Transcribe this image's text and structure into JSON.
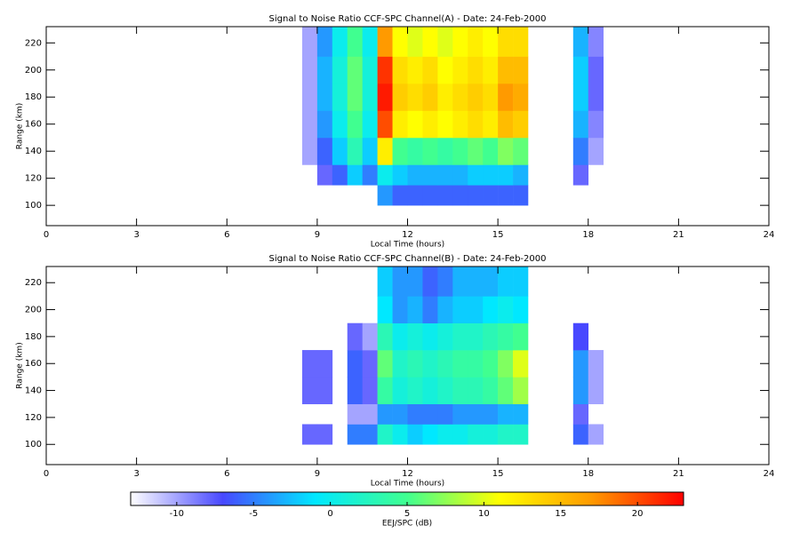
{
  "chart_data": [
    {
      "type": "heatmap",
      "title": "Signal to Noise Ratio CCF-SPC Channel(A) - Date: 24-Feb-2000",
      "xlabel": "Local Time (hours)",
      "ylabel": "Range (km)",
      "xlim": [
        0,
        24
      ],
      "xticks": [
        0,
        3,
        6,
        9,
        12,
        15,
        18,
        21,
        24
      ],
      "ylim": [
        85,
        232
      ],
      "yticks": [
        100,
        120,
        140,
        160,
        180,
        200,
        220
      ],
      "x_edges": [
        8.5,
        9,
        9.5,
        10,
        10.5,
        11,
        11.5,
        12,
        12.5,
        13,
        13.5,
        14,
        14.5,
        15,
        15.5,
        16,
        16.5,
        17,
        17.5,
        18,
        18.5
      ],
      "y_edges": [
        85,
        100,
        115,
        130,
        150,
        170,
        190,
        210,
        232
      ],
      "z": [
        [
          null,
          null,
          null,
          null,
          null,
          null,
          null,
          null,
          null,
          null,
          null,
          null,
          null,
          null,
          null,
          null,
          null,
          null,
          null,
          null
        ],
        [
          null,
          null,
          null,
          null,
          null,
          -4,
          -6,
          -6,
          -6,
          -6,
          -6,
          -6,
          -6,
          -6,
          -6,
          null,
          null,
          null,
          null,
          null
        ],
        [
          null,
          -8,
          -6,
          -2,
          -5,
          0,
          -2,
          -3,
          -3,
          -3,
          -3,
          -2,
          -2,
          -2,
          -3,
          null,
          null,
          null,
          -8,
          null
        ],
        [
          -10,
          -6,
          -2,
          3,
          -2,
          12,
          5,
          4,
          5,
          4,
          5,
          6,
          5,
          7,
          6,
          null,
          null,
          null,
          -5,
          -10
        ],
        [
          -10,
          -4,
          0,
          5,
          0,
          20,
          12,
          11,
          12,
          11,
          12,
          13,
          12,
          15,
          14,
          null,
          null,
          null,
          -3,
          -9
        ],
        [
          -10,
          -3,
          1,
          6,
          1,
          22,
          14,
          13,
          14,
          12,
          13,
          14,
          13,
          17,
          16,
          null,
          null,
          null,
          -2,
          -8
        ],
        [
          -10,
          -3,
          1,
          6,
          1,
          21,
          13,
          12,
          13,
          11,
          12,
          13,
          12,
          15,
          15,
          null,
          null,
          null,
          -2,
          -8
        ],
        [
          -10,
          -4,
          0,
          5,
          0,
          17,
          11,
          10,
          11,
          10,
          11,
          12,
          11,
          13,
          13,
          null,
          null,
          null,
          -3,
          -9
        ]
      ]
    },
    {
      "type": "heatmap",
      "title": "Signal to Noise Ratio CCF-SPC Channel(B) - Date: 24-Feb-2000",
      "xlabel": "Local Time (hours)",
      "ylabel": "Range (km)",
      "xlim": [
        0,
        24
      ],
      "xticks": [
        0,
        3,
        6,
        9,
        12,
        15,
        18,
        21,
        24
      ],
      "ylim": [
        85,
        232
      ],
      "yticks": [
        100,
        120,
        140,
        160,
        180,
        200,
        220
      ],
      "x_edges": [
        8.5,
        9,
        9.5,
        10,
        10.5,
        11,
        11.5,
        12,
        12.5,
        13,
        13.5,
        14,
        14.5,
        15,
        15.5,
        16,
        16.5,
        17,
        17.5,
        18,
        18.5
      ],
      "y_edges": [
        85,
        100,
        115,
        130,
        150,
        170,
        190,
        210,
        232
      ],
      "z": [
        [
          null,
          null,
          null,
          null,
          null,
          null,
          null,
          null,
          null,
          null,
          null,
          null,
          null,
          null,
          null,
          null,
          null,
          null,
          null,
          null
        ],
        [
          -8,
          -8,
          null,
          -5,
          -5,
          2,
          0,
          -2,
          -1,
          0,
          0,
          1,
          1,
          2,
          2,
          null,
          null,
          null,
          -6,
          -10
        ],
        [
          null,
          null,
          null,
          -10,
          -10,
          -4,
          -4,
          -5,
          -5,
          -5,
          -4,
          -4,
          -4,
          -3,
          -3,
          null,
          null,
          null,
          -8,
          null
        ],
        [
          -8,
          -8,
          null,
          -6,
          -8,
          4,
          1,
          2,
          1,
          2,
          3,
          3,
          4,
          6,
          8,
          null,
          null,
          null,
          -4,
          -10
        ],
        [
          -8,
          -8,
          null,
          -6,
          -8,
          6,
          2,
          3,
          2,
          3,
          4,
          4,
          5,
          7,
          10,
          null,
          null,
          null,
          -4,
          -10
        ],
        [
          null,
          null,
          null,
          -8,
          -10,
          3,
          0,
          1,
          0,
          1,
          2,
          2,
          3,
          4,
          5,
          null,
          null,
          null,
          -7,
          null
        ],
        [
          null,
          null,
          null,
          null,
          null,
          -1,
          -4,
          -3,
          -5,
          -3,
          -2,
          -2,
          -1,
          0,
          -1,
          null,
          null,
          null,
          null,
          null
        ],
        [
          null,
          null,
          null,
          null,
          null,
          -2,
          -4,
          -4,
          -6,
          -5,
          -3,
          -3,
          -3,
          -2,
          -2,
          null,
          null,
          null,
          null,
          null
        ]
      ]
    }
  ],
  "colorbar": {
    "label": "EEJ/SPC (dB)",
    "clim": [
      -13,
      23
    ],
    "ticks": [
      -10,
      -5,
      0,
      5,
      10,
      15,
      20
    ],
    "colors": [
      "#ffffff",
      "#4848ff",
      "#00e8ff",
      "#40ff90",
      "#ffff00",
      "#ff9a00",
      "#ff0000"
    ]
  }
}
